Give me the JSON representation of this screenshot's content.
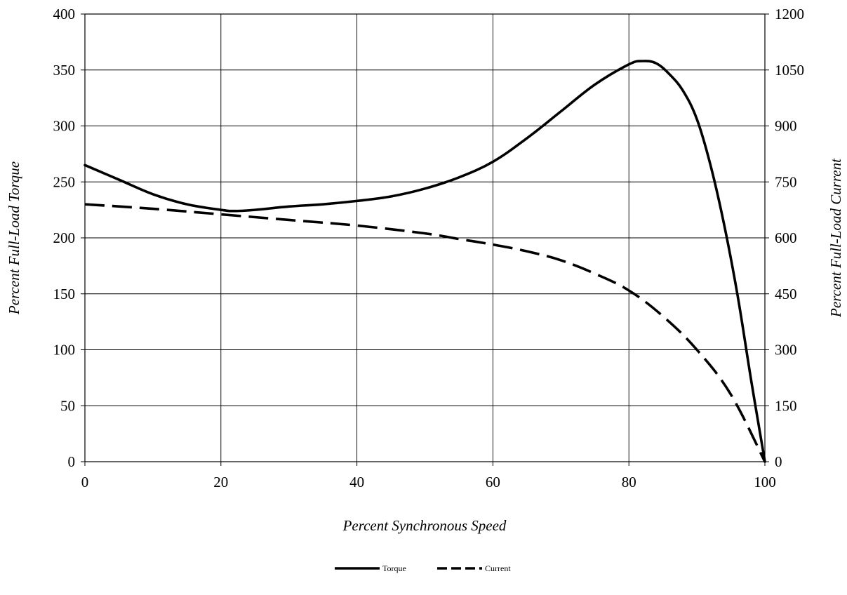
{
  "chart_data": {
    "type": "line",
    "title": "",
    "xlabel": "Percent Synchronous Speed",
    "ylabel": "Percent Full-Load Torque",
    "y2label": "Percent Full-Load Current",
    "xlim": [
      0,
      100
    ],
    "ylim": [
      0,
      400
    ],
    "y2lim": [
      0,
      1200
    ],
    "xticks": [
      0,
      20,
      40,
      60,
      80,
      100
    ],
    "yticks": [
      0,
      50,
      100,
      150,
      200,
      250,
      300,
      350,
      400
    ],
    "y2ticks": [
      0,
      150,
      300,
      450,
      600,
      750,
      900,
      1050,
      1200
    ],
    "grid": true,
    "legend_position": "bottom-center",
    "series": [
      {
        "name": "Torque",
        "axis": "left",
        "style": "solid",
        "color": "#000000",
        "x": [
          0,
          5,
          10,
          15,
          20,
          22,
          25,
          30,
          35,
          40,
          45,
          50,
          55,
          60,
          65,
          70,
          75,
          80,
          82,
          84,
          86,
          88,
          90,
          92,
          94,
          96,
          98,
          100
        ],
        "y": [
          265,
          252,
          239,
          230,
          225,
          224,
          225,
          228,
          230,
          233,
          237,
          244,
          254,
          268,
          289,
          313,
          337,
          355,
          358,
          356,
          346,
          331,
          306,
          265,
          212,
          148,
          72,
          0
        ]
      },
      {
        "name": "Current",
        "axis": "right",
        "style": "dashed",
        "color": "#000000",
        "x": [
          0,
          10,
          20,
          30,
          40,
          50,
          55,
          60,
          65,
          70,
          75,
          80,
          85,
          90,
          95,
          100
        ],
        "y": [
          690,
          678,
          663,
          648,
          633,
          612,
          597,
          582,
          564,
          540,
          504,
          459,
          390,
          300,
          180,
          0
        ]
      }
    ]
  }
}
